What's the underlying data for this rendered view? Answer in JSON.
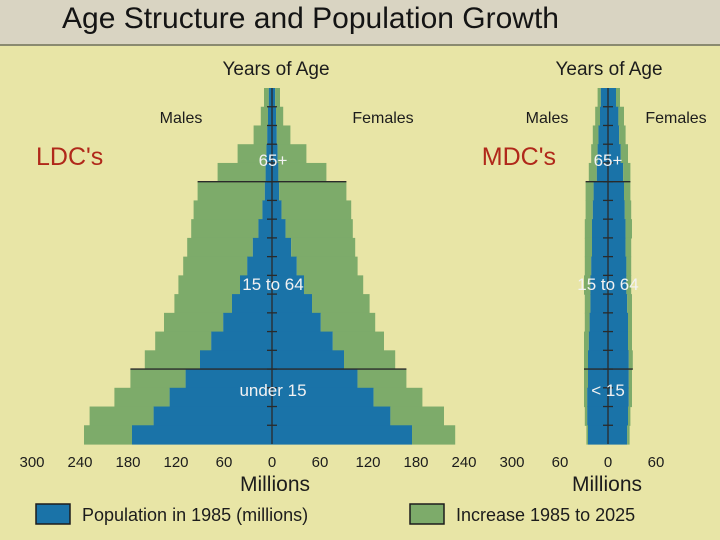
{
  "title": "Age Structure and Population Growth",
  "chart_data": [
    {
      "type": "bar",
      "subtype": "population-pyramid",
      "name": "LDC's",
      "age_axis_label": "Years of Age",
      "left_label": "Males",
      "right_label": "Females",
      "age_group_labels": [
        "65+",
        "15 to 64",
        "under 15"
      ],
      "x_ticks": [
        300,
        240,
        180,
        120,
        60,
        0,
        60,
        120,
        180,
        240,
        300
      ],
      "xlabel": "Millions",
      "xlim": [
        -300,
        300
      ],
      "series": [
        {
          "name": "Population in 1985 (millions)",
          "color": "#1a73a8",
          "male": [
            4,
            5,
            6,
            7,
            8,
            9,
            12,
            17,
            24,
            31,
            40,
            50,
            61,
            76,
            90,
            108,
            128,
            148,
            175
          ],
          "female": [
            4,
            5,
            6,
            7,
            8,
            9,
            12,
            17,
            24,
            31,
            40,
            50,
            61,
            76,
            90,
            107,
            127,
            148,
            175
          ]
        },
        {
          "name": "Increase 1985 to 2025",
          "color": "#7dab6a",
          "male": [
            6,
            9,
            17,
            36,
            60,
            84,
            86,
            84,
            82,
            80,
            77,
            72,
            74,
            70,
            69,
            69,
            69,
            80,
            60
          ],
          "female": [
            6,
            9,
            17,
            36,
            60,
            84,
            87,
            84,
            80,
            76,
            74,
            72,
            68,
            64,
            64,
            61,
            61,
            67,
            54
          ]
        }
      ]
    },
    {
      "type": "bar",
      "subtype": "population-pyramid",
      "name": "MDC's",
      "age_axis_label": "Years of Age",
      "left_label": "Males",
      "right_label": "Females",
      "age_group_labels": [
        "65+",
        "15 to 64",
        "< 15"
      ],
      "x_ticks": [
        60,
        0,
        60
      ],
      "xlabel": "Millions",
      "xlim": [
        -60,
        60
      ],
      "series": [
        {
          "name": "Population in 1985 (millions)",
          "color": "#1a73a8",
          "male": [
            9,
            10,
            12,
            13,
            14,
            18,
            19,
            20,
            20,
            21,
            22,
            22,
            23,
            24,
            25,
            25,
            26,
            26,
            25
          ],
          "female": [
            10,
            13,
            14,
            16,
            19,
            20,
            21,
            22,
            22,
            23,
            23,
            24,
            25,
            25,
            26,
            26,
            26,
            25,
            24
          ]
        },
        {
          "name": "Increase 1985 to 2025",
          "color": "#7dab6a",
          "male": [
            4,
            6,
            7,
            8,
            10,
            10,
            9,
            9,
            9,
            8,
            8,
            7,
            6,
            6,
            5,
            5,
            4,
            3,
            2
          ],
          "female": [
            5,
            7,
            8,
            9,
            9,
            8,
            8,
            8,
            7,
            6,
            6,
            6,
            5,
            5,
            5,
            4,
            4,
            3,
            3
          ]
        }
      ]
    }
  ],
  "legend": [
    {
      "label": "Population in 1985 (millions)",
      "color": "#1a73a8"
    },
    {
      "label": "Increase 1985 to 2025",
      "color": "#7dab6a"
    }
  ],
  "colors": {
    "background": "#e8e5a6",
    "title_bar": "#d9d4c2",
    "region_label": "#b0281a",
    "grid": "#2a2a2a"
  }
}
